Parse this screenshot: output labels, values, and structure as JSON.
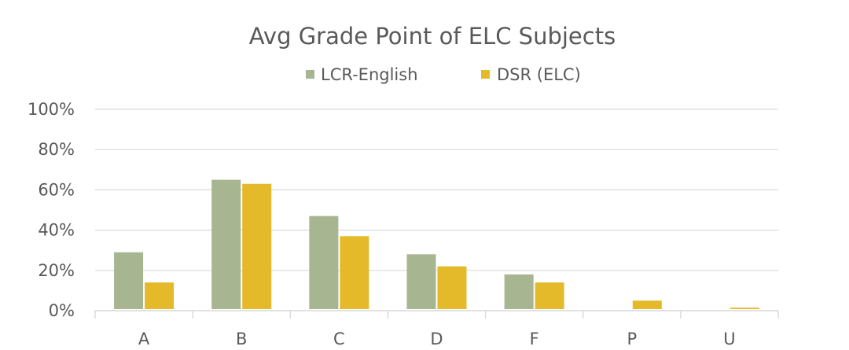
{
  "chart_data": {
    "type": "bar",
    "title": "Avg Grade Point of ELC Subjects",
    "xlabel": "",
    "ylabel": "",
    "categories": [
      "A",
      "B",
      "C",
      "D",
      "F",
      "P",
      "U"
    ],
    "series": [
      {
        "name": "LCR-English",
        "color": "#a7b590",
        "values": [
          29,
          65,
          47,
          28,
          18,
          0,
          0
        ]
      },
      {
        "name": "DSR (ELC)",
        "color": "#e4b92a",
        "values": [
          14,
          63,
          37,
          22,
          14,
          5,
          1.5
        ]
      }
    ],
    "ylim": [
      0,
      100
    ],
    "yticks": [
      0,
      20,
      40,
      60,
      80,
      100
    ],
    "ytick_labels": [
      "0%",
      "20%",
      "40%",
      "60%",
      "80%",
      "100%"
    ],
    "grid": true,
    "legend_position": "top-center"
  }
}
